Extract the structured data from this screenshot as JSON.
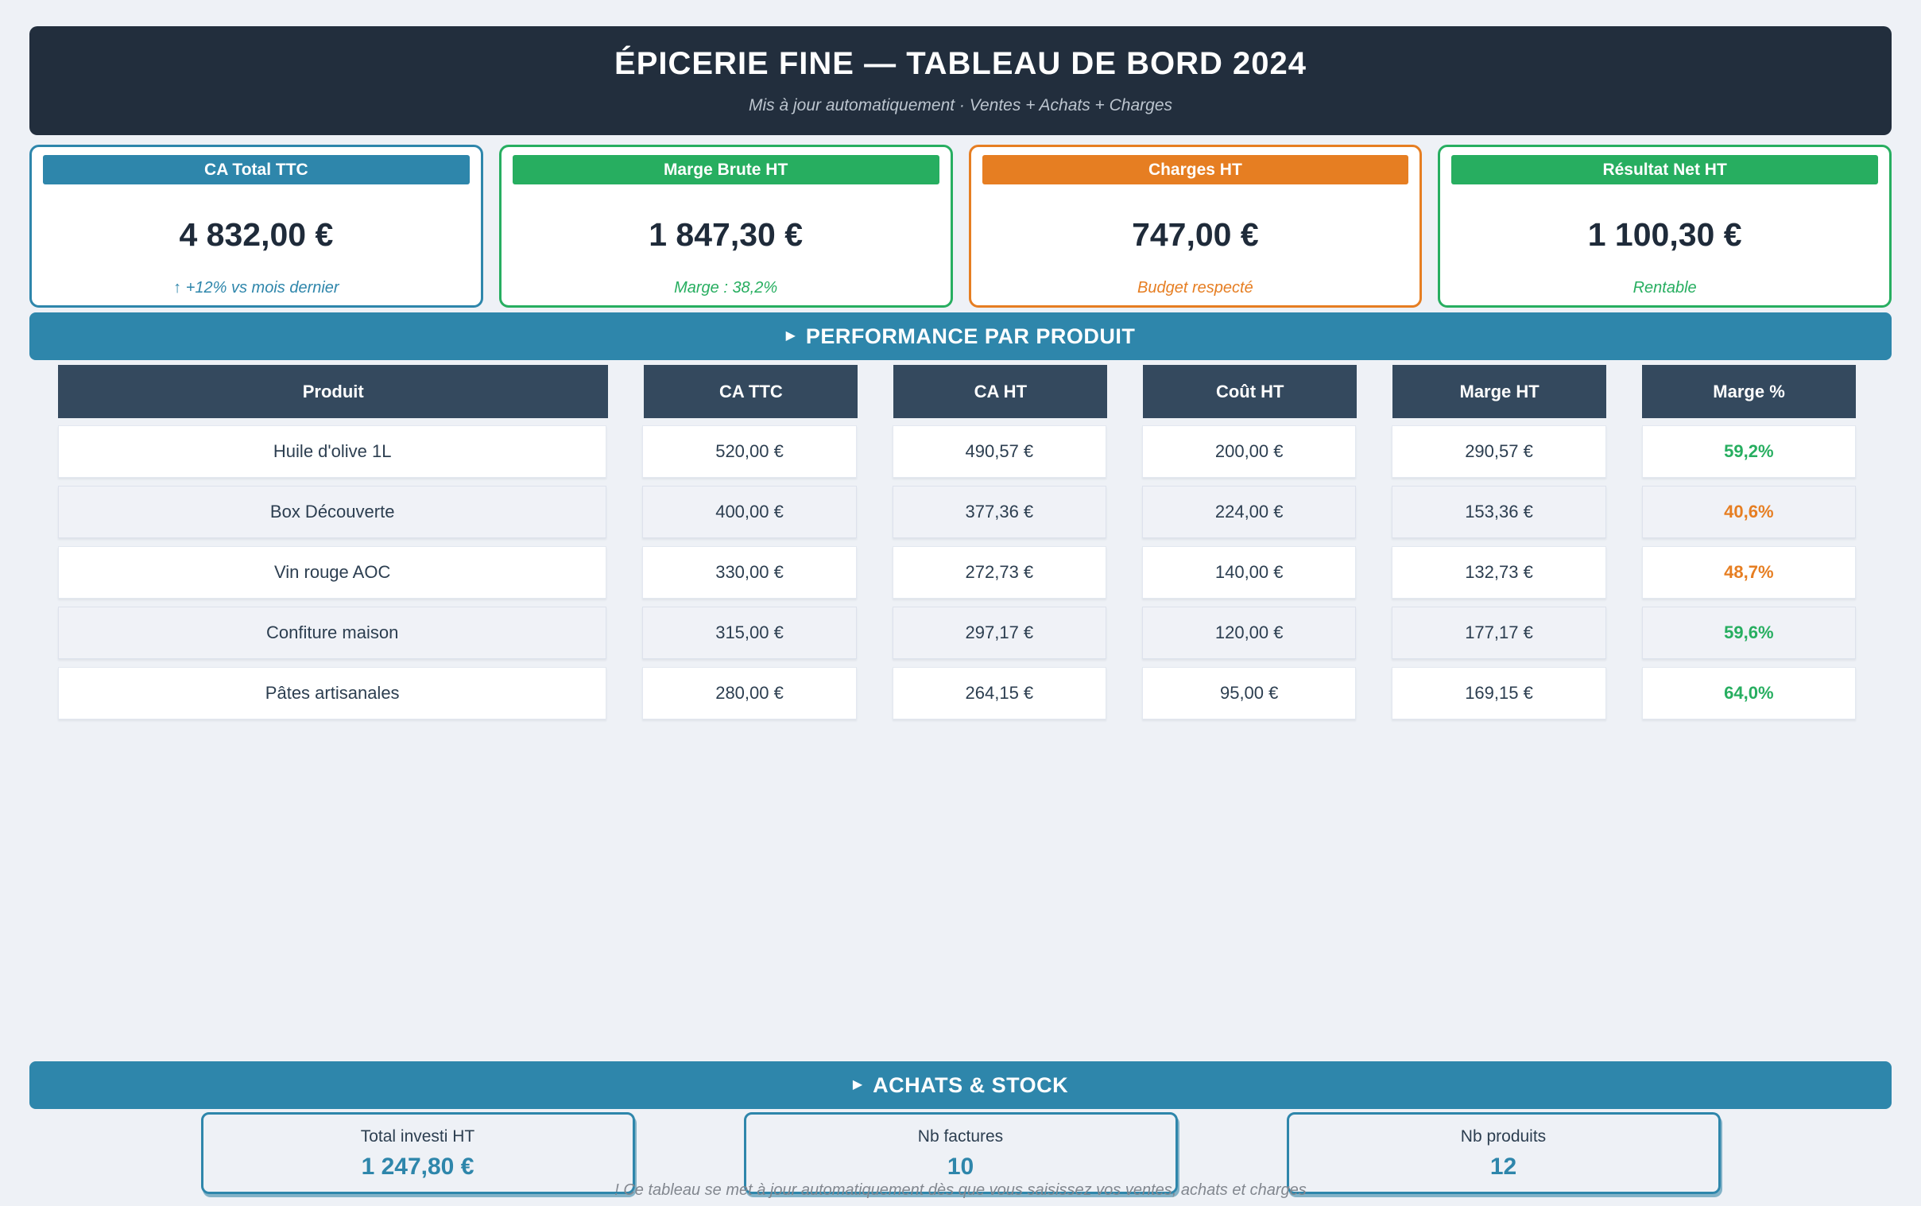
{
  "header": {
    "title": "ÉPICERIE FINE — TABLEAU DE BORD 2024",
    "subtitle": "Mis à jour automatiquement · Ventes + Achats + Charges"
  },
  "colors": {
    "accent_teal": "#2e86ab",
    "green": "#27ae60",
    "orange": "#e67e22",
    "header_navy": "#222e3d",
    "table_header_navy": "#34495e"
  },
  "kpis": [
    {
      "label": "CA Total TTC",
      "value": "4 832,00 €",
      "note": "↑ +12% vs mois dernier",
      "color": "#2e86ab"
    },
    {
      "label": "Marge Brute HT",
      "value": "1 847,30 €",
      "note": "Marge : 38,2%",
      "color": "#27ae60"
    },
    {
      "label": "Charges HT",
      "value": "747,00 €",
      "note": "Budget respecté",
      "color": "#e67e22"
    },
    {
      "label": "Résultat Net HT",
      "value": "1 100,30 €",
      "note": "Rentable",
      "color": "#27ae60"
    }
  ],
  "sections": {
    "arrow": "▶",
    "performance": "PERFORMANCE PAR PRODUIT",
    "achats": "ACHATS & STOCK"
  },
  "table": {
    "columns": [
      "Produit",
      "CA TTC",
      "CA HT",
      "Coût HT",
      "Marge HT",
      "Marge %"
    ],
    "rows": [
      {
        "produit": "Huile d'olive 1L",
        "ca_ttc": "520,00 €",
        "ca_ht": "490,57 €",
        "cout_ht": "200,00 €",
        "marge_ht": "290,57 €",
        "marge_pct": "59,2%",
        "marge_color": "#27ae60"
      },
      {
        "produit": "Box Découverte",
        "ca_ttc": "400,00 €",
        "ca_ht": "377,36 €",
        "cout_ht": "224,00 €",
        "marge_ht": "153,36 €",
        "marge_pct": "40,6%",
        "marge_color": "#e67e22"
      },
      {
        "produit": "Vin rouge AOC",
        "ca_ttc": "330,00 €",
        "ca_ht": "272,73 €",
        "cout_ht": "140,00 €",
        "marge_ht": "132,73 €",
        "marge_pct": "48,7%",
        "marge_color": "#e67e22"
      },
      {
        "produit": "Confiture maison",
        "ca_ttc": "315,00 €",
        "ca_ht": "297,17 €",
        "cout_ht": "120,00 €",
        "marge_ht": "177,17 €",
        "marge_pct": "59,6%",
        "marge_color": "#27ae60"
      },
      {
        "produit": "Pâtes artisanales",
        "ca_ttc": "280,00 €",
        "ca_ht": "264,15 €",
        "cout_ht": "95,00 €",
        "marge_ht": "169,15 €",
        "marge_pct": "64,0%",
        "marge_color": "#27ae60"
      }
    ]
  },
  "stats": [
    {
      "label": "Total investi HT",
      "value": "1 247,80 €"
    },
    {
      "label": "Nb factures",
      "value": "10"
    },
    {
      "label": "Nb produits",
      "value": "12"
    }
  ],
  "footer": {
    "note": "! Ce tableau se met à jour automatiquement dès que vous saisissez vos ventes, achats et charges"
  }
}
